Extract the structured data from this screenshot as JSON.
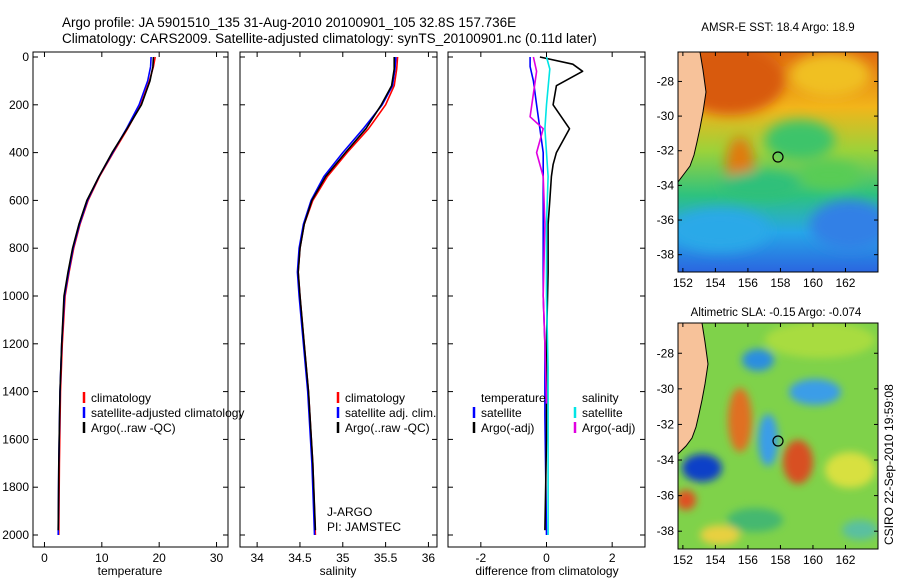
{
  "header": {
    "line1": "Argo profile: JA 5901510_135 31-Aug-2010 20100901_105 32.8S 157.736E",
    "line2": "Climatology: CARS2009. Satellite-adjusted climatology: synTS_20100901.nc (0.11d later)"
  },
  "side_label": "CSIRO 22-Sep-2010 19:59:08",
  "colors": {
    "climatology": "#ff0000",
    "satellite": "#0000ff",
    "argo": "#000000",
    "sat_salinity": "#00e5e5",
    "argo_adj_salinity": "#e000e0",
    "land": "#f7c29a"
  },
  "chart_data": [
    {
      "id": "temperature",
      "type": "line",
      "xlabel": "temperature",
      "ylabel": "",
      "xlim": [
        -2,
        32
      ],
      "ylim": [
        2050,
        0
      ],
      "xticks": [
        0,
        10,
        20,
        30
      ],
      "yticks": [
        0,
        200,
        400,
        600,
        800,
        1000,
        1200,
        1400,
        1600,
        1800,
        2000
      ],
      "legend": [
        "climatology",
        "satellite-adjusted climatology",
        "Argo(..raw -QC)"
      ],
      "series": [
        {
          "name": "climatology",
          "color": "#ff0000",
          "x": [
            19.3,
            19.0,
            18.3,
            16.8,
            14.5,
            12.0,
            9.6,
            7.6,
            6.2,
            5.1,
            4.3,
            3.6,
            3.1,
            2.8,
            2.6,
            2.5
          ],
          "y": [
            0,
            40,
            100,
            200,
            300,
            400,
            500,
            600,
            700,
            800,
            900,
            1000,
            1200,
            1400,
            1700,
            2000
          ]
        },
        {
          "name": "satellite-adjusted climatology",
          "color": "#0000ff",
          "x": [
            18.6,
            18.5,
            18.0,
            16.5,
            14.3,
            11.9,
            9.5,
            7.5,
            6.1,
            5.0,
            4.2,
            3.5,
            3.0,
            2.7,
            2.5,
            2.4
          ],
          "y": [
            0,
            40,
            100,
            200,
            300,
            400,
            500,
            600,
            700,
            800,
            900,
            1000,
            1200,
            1400,
            1700,
            2000
          ]
        },
        {
          "name": "Argo(..raw -QC)",
          "color": "#000000",
          "x": [
            19.0,
            18.9,
            18.4,
            16.9,
            14.4,
            11.8,
            9.5,
            7.4,
            6.0,
            4.9,
            4.1,
            3.4,
            3.0,
            2.7,
            2.5,
            2.4
          ],
          "y": [
            0,
            40,
            100,
            200,
            300,
            400,
            500,
            600,
            700,
            800,
            900,
            1000,
            1200,
            1400,
            1700,
            1980
          ]
        }
      ]
    },
    {
      "id": "salinity",
      "type": "line",
      "xlabel": "salinity",
      "ylabel": "",
      "xlim": [
        33.8,
        36.1
      ],
      "ylim": [
        2050,
        0
      ],
      "xticks": [
        34,
        34.5,
        35,
        35.5,
        36
      ],
      "yticks": [
        0,
        200,
        400,
        600,
        800,
        1000,
        1200,
        1400,
        1600,
        1800,
        2000
      ],
      "legend": [
        "climatology",
        "satellite adj. clim.",
        "Argo(..raw -QC)"
      ],
      "annotation": [
        "J-ARGO",
        "PI: JAMSTEC"
      ],
      "series": [
        {
          "name": "climatology",
          "color": "#ff0000",
          "x": [
            35.64,
            35.63,
            35.6,
            35.5,
            35.3,
            35.05,
            34.82,
            34.65,
            34.55,
            34.5,
            34.48,
            34.5,
            34.55,
            34.6,
            34.65,
            34.68
          ],
          "y": [
            0,
            50,
            120,
            200,
            300,
            400,
            500,
            600,
            700,
            800,
            900,
            1000,
            1200,
            1400,
            1700,
            2000
          ]
        },
        {
          "name": "satellite adj. clim.",
          "color": "#0000ff",
          "x": [
            35.62,
            35.61,
            35.58,
            35.46,
            35.24,
            35.0,
            34.78,
            34.63,
            34.54,
            34.49,
            34.47,
            34.49,
            34.54,
            34.59,
            34.64,
            34.67
          ],
          "y": [
            0,
            50,
            120,
            200,
            300,
            400,
            500,
            600,
            700,
            800,
            900,
            1000,
            1200,
            1400,
            1700,
            2000
          ]
        },
        {
          "name": "Argo(..raw -QC)",
          "color": "#000000",
          "x": [
            35.6,
            35.6,
            35.57,
            35.45,
            35.27,
            35.03,
            34.8,
            34.64,
            34.55,
            34.5,
            34.48,
            34.5,
            34.55,
            34.6,
            34.65,
            34.68
          ],
          "y": [
            0,
            50,
            120,
            200,
            300,
            400,
            500,
            600,
            700,
            800,
            900,
            1000,
            1200,
            1400,
            1700,
            1980
          ]
        }
      ]
    },
    {
      "id": "difference",
      "type": "line",
      "xlabel": "difference from climatology",
      "ylabel": "",
      "xlim": [
        -3,
        3
      ],
      "ylim": [
        2050,
        0
      ],
      "xticks": [
        -2,
        0,
        2
      ],
      "yticks": [
        0,
        200,
        400,
        600,
        800,
        1000,
        1200,
        1400,
        1600,
        1800,
        2000
      ],
      "legend_titles": [
        "temperature",
        "salinity"
      ],
      "legend": [
        "satellite",
        "Argo(-adj)",
        "satellite",
        "Argo(-adj)"
      ],
      "series": [
        {
          "name": "temperature satellite",
          "color": "#0000ff",
          "x": [
            -0.5,
            -0.5,
            -0.4,
            -0.3,
            -0.2,
            -0.1,
            -0.1,
            -0.1,
            -0.1,
            -0.1,
            -0.1,
            -0.1,
            -0.05,
            -0.05,
            0
          ],
          "y": [
            0,
            40,
            100,
            200,
            300,
            400,
            500,
            600,
            700,
            800,
            900,
            1000,
            1200,
            1500,
            2000
          ]
        },
        {
          "name": "temperature Argo(-adj)",
          "color": "#000000",
          "x": [
            -0.2,
            0.8,
            1.1,
            0.3,
            0.2,
            0.7,
            0.3,
            0.2,
            0.15,
            0.1,
            0.05,
            0.05,
            0.0,
            0.0,
            -0.05
          ],
          "y": [
            0,
            30,
            60,
            120,
            200,
            300,
            400,
            450,
            500,
            600,
            700,
            900,
            1200,
            1600,
            1980
          ]
        },
        {
          "name": "salinity satellite",
          "color": "#00e5e5",
          "x": [
            0.0,
            0.1,
            0.0,
            -0.05,
            0.0,
            0.05,
            0.0,
            0.0,
            0.05,
            0.05,
            0.05
          ],
          "y": [
            0,
            50,
            200,
            300,
            400,
            500,
            700,
            1000,
            1300,
            1700,
            2000
          ]
        },
        {
          "name": "salinity Argo(-adj)",
          "color": "#e000e0",
          "x": [
            -0.4,
            -0.3,
            -0.5,
            -0.1,
            -0.3,
            -0.1,
            -0.05,
            -0.1,
            -0.05,
            0.0
          ],
          "y": [
            0,
            60,
            250,
            300,
            400,
            500,
            700,
            1000,
            1200,
            1450
          ]
        }
      ]
    },
    {
      "id": "amsre_sst_map",
      "type": "heatmap",
      "title": "AMSR-E SST: 18.4 Argo: 18.9",
      "xticks": [
        152,
        154,
        156,
        158,
        160,
        162
      ],
      "yticks": [
        -28,
        -30,
        -32,
        -34,
        -36,
        -38
      ],
      "xlim": [
        151.7,
        164
      ],
      "ylim": [
        -39,
        -26.3
      ],
      "argo_position": [
        157.74,
        -32.8
      ]
    },
    {
      "id": "altimetric_sla_map",
      "type": "heatmap",
      "title": "Altimetric SLA: -0.15 Argo: -0.074",
      "xticks": [
        152,
        154,
        156,
        158,
        160,
        162
      ],
      "yticks": [
        -28,
        -30,
        -32,
        -34,
        -36,
        -38
      ],
      "xlim": [
        151.7,
        164
      ],
      "ylim": [
        -39,
        -26.3
      ],
      "argo_position": [
        157.74,
        -32.8
      ]
    }
  ]
}
